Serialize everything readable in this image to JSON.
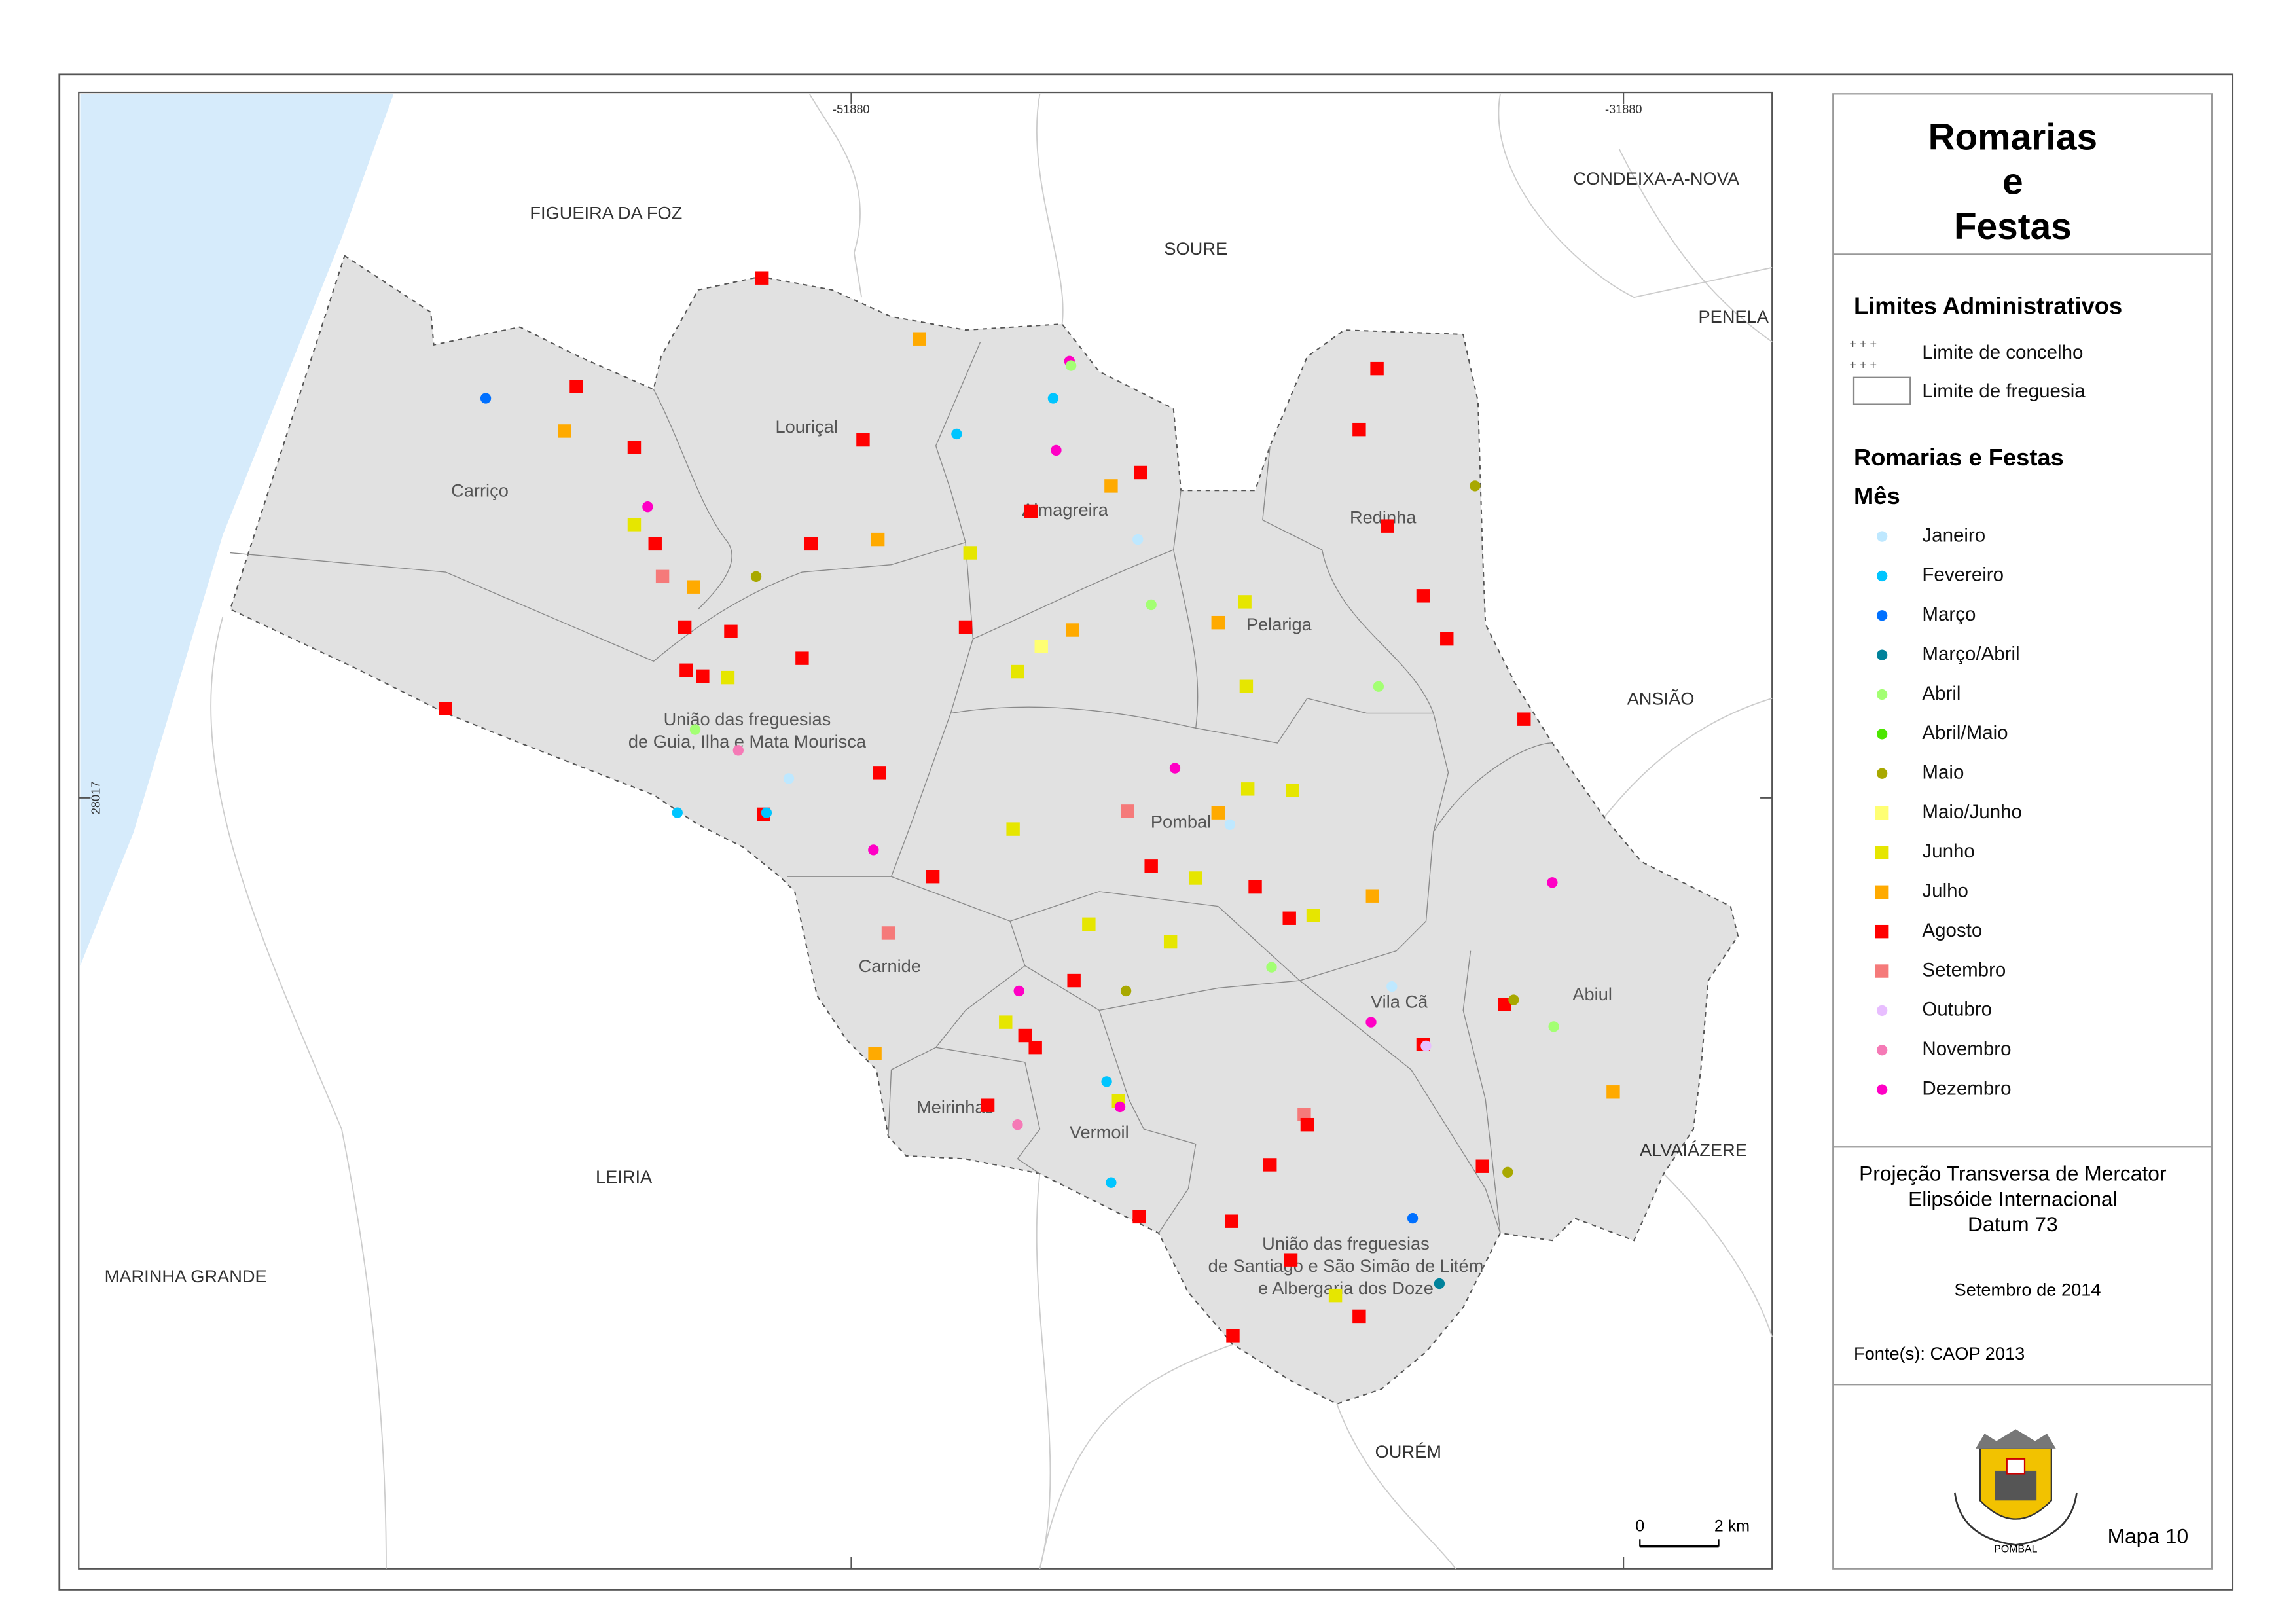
{
  "map": {
    "coordinates": {
      "top_left": "-51880",
      "top_right": "-31880",
      "left": "28017"
    },
    "places": [
      "FIGUEIRA DA FOZ",
      "SOURE",
      "CONDEIXA-A-NOVA",
      "PENELA",
      "ANSIÃO",
      "ALVAIÁZERE",
      "OURÉM",
      "LEIRIA",
      "MARINHA GRANDE"
    ],
    "parishes": [
      [
        "Carriço"
      ],
      [
        "Louriçal"
      ],
      [
        "Almagreira"
      ],
      [
        "Redinha"
      ],
      [
        "Pelariga"
      ],
      [
        "União das freguesias",
        "de Guia, Ilha e Mata Mourisca"
      ],
      [
        "Pombal"
      ],
      [
        "Carnide"
      ],
      [
        "Vila Cã"
      ],
      [
        "Abiul"
      ],
      [
        "Meirinhas"
      ],
      [
        "Vermoil"
      ],
      [
        "União das freguesias",
        "de Santiago e São Simão de Litém",
        "e Albergaria dos Doze"
      ]
    ],
    "scale_bar": {
      "start": "0",
      "end": "2 km"
    }
  },
  "legend": {
    "title": [
      "Romarias",
      "e",
      "Festas"
    ],
    "admin_heading": "Limites Administrativos",
    "admin_items": [
      "Limite de concelho",
      "Limite de freguesia"
    ],
    "events_heading": "Romarias e Festas",
    "month_heading": "Mês",
    "months": [
      {
        "label": "Janeiro",
        "color": "#bee8ff",
        "shape": "circle"
      },
      {
        "label": "Fevereiro",
        "color": "#00c5ff",
        "shape": "circle"
      },
      {
        "label": "Março",
        "color": "#0070ff",
        "shape": "circle"
      },
      {
        "label": "Março/Abril",
        "color": "#00829b",
        "shape": "circle"
      },
      {
        "label": "Abril",
        "color": "#a3ff73",
        "shape": "circle"
      },
      {
        "label": "Abril/Maio",
        "color": "#4ce600",
        "shape": "circle"
      },
      {
        "label": "Maio",
        "color": "#a8a800",
        "shape": "circle"
      },
      {
        "label": "Maio/Junho",
        "color": "#ffff73",
        "shape": "square"
      },
      {
        "label": "Junho",
        "color": "#e6e600",
        "shape": "square"
      },
      {
        "label": "Julho",
        "color": "#ffaa00",
        "shape": "square"
      },
      {
        "label": "Agosto",
        "color": "#ff0000",
        "shape": "square"
      },
      {
        "label": "Setembro",
        "color": "#f57a7a",
        "shape": "square"
      },
      {
        "label": "Outubro",
        "color": "#e8beff",
        "shape": "circle"
      },
      {
        "label": "Novembro",
        "color": "#f57ab6",
        "shape": "circle"
      },
      {
        "label": "Dezembro",
        "color": "#ff00c5",
        "shape": "circle"
      }
    ]
  },
  "projection": [
    "Projeção Transversa de Mercator",
    "Elipsóide Internacional",
    "Datum 73"
  ],
  "date": "Setembro de 2014",
  "source": "Fonte(s): CAOP 2013",
  "emblem_text": "POMBAL",
  "map_number": "Mapa 10"
}
